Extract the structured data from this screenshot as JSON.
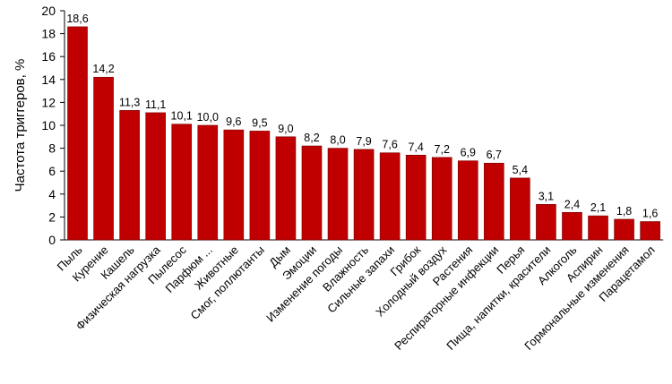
{
  "chart_data": {
    "type": "bar",
    "ylabel": "Частота триггеров, %",
    "xlabel": "",
    "ylim": [
      0,
      20
    ],
    "yticks": [
      0,
      2,
      4,
      6,
      8,
      10,
      12,
      14,
      16,
      18,
      20
    ],
    "grid": false,
    "legend": "none",
    "bar_color": "#C00000",
    "categories": [
      "Пыль",
      "Курение",
      "Кашель",
      "Физическая нагрузка",
      "Пылесос",
      "Парфюм ...",
      "Животные",
      "Смог, поллютанты",
      "Дым",
      "Эмоции",
      "Изменение погоды",
      "Влажность",
      "Сильные запахи",
      "Грибок",
      "Холодный воздух",
      "Растения",
      "Респираторные инфекции",
      "Перья",
      "Пища, напитки, красители",
      "Алкоголь",
      "Аспирин",
      "Гормональные изменения",
      "Парацетамол"
    ],
    "values": [
      18.6,
      14.2,
      11.3,
      11.1,
      10.1,
      10.0,
      9.6,
      9.5,
      9.0,
      8.2,
      8.0,
      7.9,
      7.6,
      7.4,
      7.2,
      6.9,
      6.7,
      5.4,
      3.1,
      2.4,
      2.1,
      1.8,
      1.6
    ],
    "value_labels": [
      "18,6",
      "14,2",
      "11,3",
      "11,1",
      "10,1",
      "10,0",
      "9,6",
      "9,5",
      "9,0",
      "8,2",
      "8,0",
      "7,9",
      "7,6",
      "7,4",
      "7,2",
      "6,9",
      "6,7",
      "5,4",
      "3,1",
      "2,4",
      "2,1",
      "1,8",
      "1,6"
    ]
  }
}
